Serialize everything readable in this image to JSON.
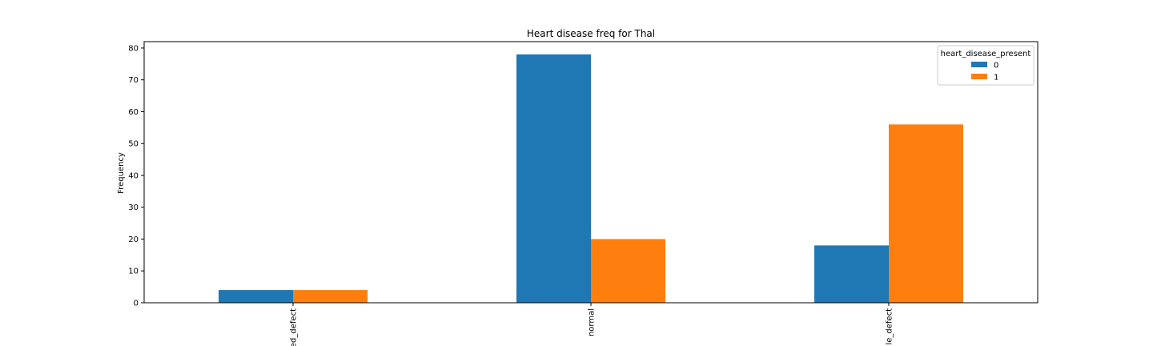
{
  "chart_data": {
    "type": "bar",
    "title": "Heart disease freq for Thal",
    "xlabel": "",
    "ylabel": "Frequency",
    "categories": [
      "ed_defect",
      "normal",
      "le_defect"
    ],
    "series": [
      {
        "name": "0",
        "values": [
          4,
          78,
          18
        ],
        "color": "#1f77b4"
      },
      {
        "name": "1",
        "values": [
          4,
          20,
          56
        ],
        "color": "#ff7f0e"
      }
    ],
    "ylim": [
      0,
      82
    ],
    "yticks": [
      0,
      10,
      20,
      30,
      40,
      50,
      60,
      70,
      80
    ],
    "grid": false,
    "legend": {
      "title": "heart_disease_present",
      "placement": "top-right"
    }
  }
}
